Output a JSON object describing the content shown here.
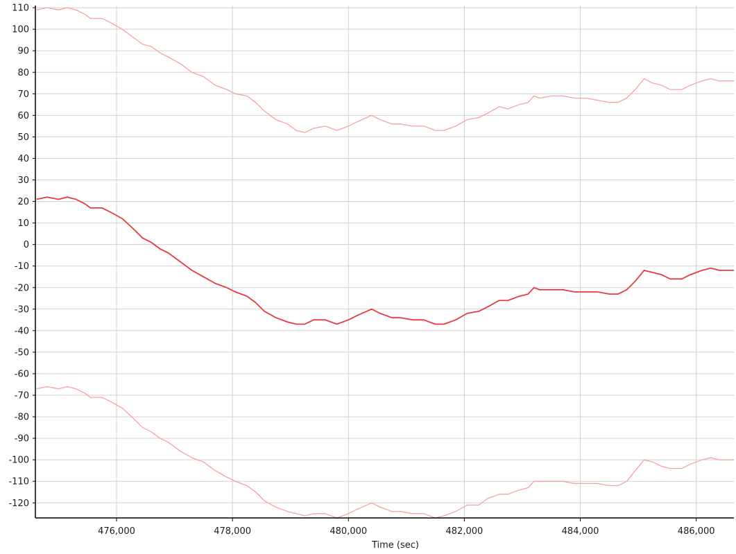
{
  "chart_data": {
    "type": "line",
    "title": "",
    "xlabel": "Time (sec)",
    "ylabel": "",
    "xlim": [
      474600,
      486650
    ],
    "ylim": [
      -127,
      111
    ],
    "x_ticks": [
      476000,
      478000,
      480000,
      482000,
      484000,
      486000
    ],
    "x_tick_labels": [
      "476,000",
      "478,000",
      "480,000",
      "482,000",
      "484,000",
      "486,000"
    ],
    "y_ticks": [
      110,
      100,
      90,
      80,
      70,
      60,
      50,
      40,
      30,
      20,
      10,
      0,
      -10,
      -20,
      -30,
      -40,
      -50,
      -60,
      -70,
      -80,
      -90,
      -100,
      -110,
      -120
    ],
    "grid": true,
    "legend": "none",
    "colors": {
      "upper": "#f7a1a1",
      "center": "#e8393f",
      "lower": "#f7a1a1",
      "grid": "#d0d0d0",
      "axis": "#000000"
    },
    "series": [
      {
        "x": [
          474620,
          474800,
          475000,
          475150,
          475300,
          475450,
          475550,
          475750,
          475900,
          476100,
          476300,
          476450,
          476600,
          476750,
          476900,
          477100,
          477300,
          477500,
          477700,
          477900,
          478050,
          478250,
          478400,
          478550,
          478750,
          478950,
          479100,
          479250,
          479400,
          479600,
          479800,
          480000,
          480150,
          480400,
          480550,
          480750,
          480900,
          481100,
          481300,
          481500,
          481650,
          481850,
          482050,
          482250,
          482400,
          482600,
          482750,
          482950,
          483100,
          483200,
          483300,
          483500,
          483700,
          483900,
          484100,
          484300,
          484500,
          484650,
          484800,
          484950,
          485100,
          485250,
          485400,
          485550,
          485750,
          485900,
          486000,
          486100,
          486250,
          486400,
          486550,
          486650
        ],
        "y": [
          109,
          110,
          109,
          110,
          109,
          107,
          105,
          105,
          103,
          100,
          96,
          93,
          92,
          89,
          87,
          84,
          80,
          78,
          74,
          72,
          70,
          69,
          66,
          62,
          58,
          56,
          53,
          52,
          54,
          55,
          53,
          55,
          57,
          60,
          58,
          56,
          56,
          55,
          55,
          53,
          53,
          55,
          58,
          59,
          61,
          64,
          63,
          65,
          66,
          69,
          68,
          69,
          69,
          68,
          68,
          67,
          66,
          66,
          68,
          72,
          77,
          75,
          74,
          72,
          72,
          74,
          75,
          76,
          77,
          76,
          76,
          76
        ]
      },
      {
        "x": [
          474620,
          474800,
          475000,
          475150,
          475300,
          475450,
          475550,
          475750,
          475900,
          476100,
          476300,
          476450,
          476600,
          476750,
          476900,
          477100,
          477300,
          477500,
          477700,
          477900,
          478050,
          478250,
          478400,
          478550,
          478750,
          478950,
          479100,
          479250,
          479400,
          479600,
          479800,
          480000,
          480150,
          480400,
          480550,
          480750,
          480900,
          481100,
          481300,
          481500,
          481650,
          481850,
          482050,
          482250,
          482400,
          482600,
          482750,
          482950,
          483100,
          483200,
          483300,
          483500,
          483700,
          483900,
          484100,
          484300,
          484500,
          484650,
          484800,
          484950,
          485100,
          485250,
          485400,
          485550,
          485750,
          485900,
          486000,
          486100,
          486250,
          486400,
          486550,
          486650
        ],
        "y": [
          21,
          22,
          21,
          22,
          21,
          19,
          17,
          17,
          15,
          12,
          7,
          3,
          1,
          -2,
          -4,
          -8,
          -12,
          -15,
          -18,
          -20,
          -22,
          -24,
          -27,
          -31,
          -34,
          -36,
          -37,
          -37,
          -35,
          -35,
          -37,
          -35,
          -33,
          -30,
          -32,
          -34,
          -34,
          -35,
          -35,
          -37,
          -37,
          -35,
          -32,
          -31,
          -29,
          -26,
          -26,
          -24,
          -23,
          -20,
          -21,
          -21,
          -21,
          -22,
          -22,
          -22,
          -23,
          -23,
          -21,
          -17,
          -12,
          -13,
          -14,
          -16,
          -16,
          -14,
          -13,
          -12,
          -11,
          -12,
          -12,
          -12
        ]
      },
      {
        "x": [
          474620,
          474800,
          475000,
          475150,
          475300,
          475450,
          475550,
          475750,
          475900,
          476100,
          476300,
          476450,
          476600,
          476750,
          476900,
          477100,
          477300,
          477500,
          477700,
          477900,
          478050,
          478250,
          478400,
          478550,
          478750,
          478950,
          479100,
          479250,
          479400,
          479600,
          479800,
          480000,
          480150,
          480400,
          480550,
          480750,
          480900,
          481100,
          481300,
          481500,
          481650,
          481850,
          482050,
          482250,
          482400,
          482600,
          482750,
          482950,
          483100,
          483200,
          483300,
          483500,
          483700,
          483900,
          484100,
          484300,
          484500,
          484650,
          484800,
          484950,
          485100,
          485250,
          485400,
          485550,
          485750,
          485900,
          486000,
          486100,
          486250,
          486400,
          486550,
          486650
        ],
        "y": [
          -67,
          -66,
          -67,
          -66,
          -67,
          -69,
          -71,
          -71,
          -73,
          -76,
          -81,
          -85,
          -87,
          -90,
          -92,
          -96,
          -99,
          -101,
          -105,
          -108,
          -110,
          -112,
          -115,
          -119,
          -122,
          -124,
          -125,
          -126,
          -125,
          -125,
          -127,
          -125,
          -123,
          -120,
          -122,
          -124,
          -124,
          -125,
          -125,
          -127,
          -126,
          -124,
          -121,
          -121,
          -118,
          -116,
          -116,
          -114,
          -113,
          -110,
          -110,
          -110,
          -110,
          -111,
          -111,
          -111,
          -112,
          -112,
          -110,
          -105,
          -100,
          -101,
          -103,
          -104,
          -104,
          -102,
          -101,
          -100,
          -99,
          -100,
          -100,
          -100
        ]
      }
    ]
  }
}
